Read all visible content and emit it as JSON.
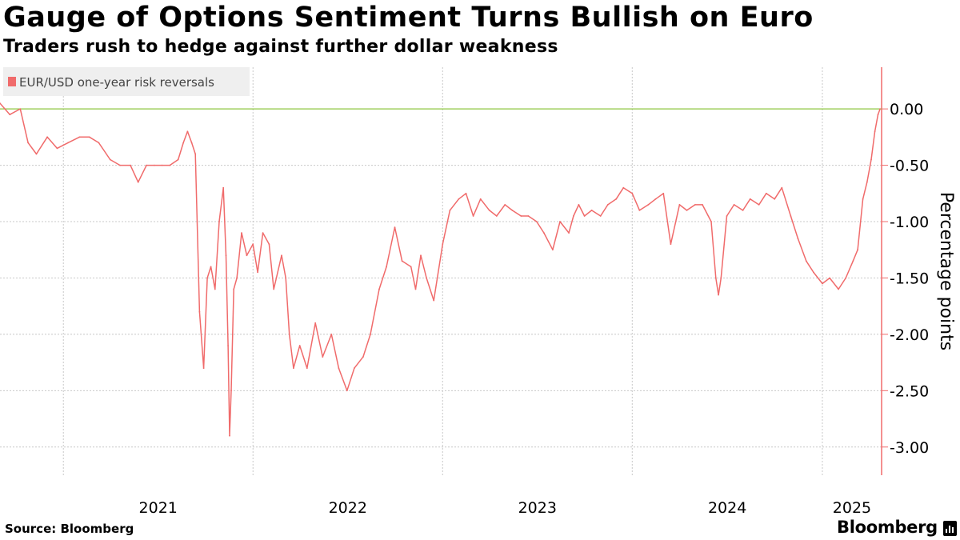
{
  "header": {
    "title": "Gauge of Options Sentiment Turns Bullish on Euro",
    "subtitle": "Traders rush to hedge against further dollar weakness"
  },
  "footer": {
    "source": "Source: Bloomberg",
    "brand": "Bloomberg"
  },
  "colors": {
    "series": "#f06b6b",
    "zero_line": "#8dc63f",
    "grid": "#c8c8c8",
    "axis": "#f06b6b",
    "legend_bg": "#efefef"
  },
  "chart_data": {
    "type": "line",
    "title": "Gauge of Options Sentiment Turns Bullish on Euro",
    "subtitle": "Traders rush to hedge against further dollar weakness",
    "ylabel": "Percentage points",
    "xlabel": "",
    "ylim": [
      -3.25,
      0.37
    ],
    "xlim": [
      "2020-09-01",
      "2025-04-25"
    ],
    "y_ticks": [
      0,
      -0.5,
      -1,
      -1.5,
      -2,
      -2.5,
      -3
    ],
    "y_tick_labels": [
      "0.00",
      "-0.50",
      "-1.00",
      "-1.50",
      "-2.00",
      "-2.50",
      "-3.00"
    ],
    "x_tick_labels": [
      "2021",
      "2022",
      "2023",
      "2024",
      "2025"
    ],
    "x_tick_dates": [
      "2021-01-01",
      "2022-01-01",
      "2023-01-01",
      "2024-01-01",
      "2025-01-01"
    ],
    "reference_line": 0,
    "grid": true,
    "legend_position": "top-left",
    "series": [
      {
        "name": "EUR/USD one-year risk reversals",
        "x": [
          "2020-09-01",
          "2020-09-20",
          "2020-10-10",
          "2020-10-25",
          "2020-11-10",
          "2020-12-01",
          "2020-12-20",
          "2021-01-10",
          "2021-02-01",
          "2021-02-20",
          "2021-03-10",
          "2021-04-01",
          "2021-04-20",
          "2021-05-10",
          "2021-05-25",
          "2021-06-10",
          "2021-06-25",
          "2021-07-10",
          "2021-07-25",
          "2021-08-10",
          "2021-08-20",
          "2021-08-28",
          "2021-09-05",
          "2021-09-12",
          "2021-09-20",
          "2021-09-28",
          "2021-10-05",
          "2021-10-12",
          "2021-10-20",
          "2021-10-28",
          "2021-11-05",
          "2021-11-10",
          "2021-11-14",
          "2021-11-17",
          "2021-11-20",
          "2021-11-25",
          "2021-12-01",
          "2021-12-10",
          "2021-12-20",
          "2022-01-01",
          "2022-01-10",
          "2022-01-20",
          "2022-02-01",
          "2022-02-10",
          "2022-02-25",
          "2022-03-05",
          "2022-03-12",
          "2022-03-20",
          "2022-04-01",
          "2022-04-15",
          "2022-05-01",
          "2022-05-15",
          "2022-06-01",
          "2022-06-15",
          "2022-07-01",
          "2022-07-15",
          "2022-08-01",
          "2022-08-15",
          "2022-09-01",
          "2022-09-15",
          "2022-10-01",
          "2022-10-15",
          "2022-11-01",
          "2022-11-10",
          "2022-11-20",
          "2022-12-01",
          "2022-12-15",
          "2023-01-01",
          "2023-01-15",
          "2023-02-01",
          "2023-02-15",
          "2023-03-01",
          "2023-03-15",
          "2023-04-01",
          "2023-04-15",
          "2023-05-01",
          "2023-05-15",
          "2023-06-01",
          "2023-06-15",
          "2023-07-01",
          "2023-07-15",
          "2023-08-01",
          "2023-08-15",
          "2023-09-01",
          "2023-09-10",
          "2023-09-20",
          "2023-10-01",
          "2023-10-15",
          "2023-11-01",
          "2023-11-15",
          "2023-12-01",
          "2023-12-15",
          "2024-01-01",
          "2024-01-15",
          "2024-02-01",
          "2024-02-15",
          "2024-03-01",
          "2024-03-15",
          "2024-04-01",
          "2024-04-15",
          "2024-05-01",
          "2024-05-15",
          "2024-06-01",
          "2024-06-10",
          "2024-06-15",
          "2024-06-20",
          "2024-07-01",
          "2024-07-15",
          "2024-08-01",
          "2024-08-15",
          "2024-09-01",
          "2024-09-15",
          "2024-10-01",
          "2024-10-15",
          "2024-11-01",
          "2024-11-15",
          "2024-12-01",
          "2024-12-15",
          "2025-01-01",
          "2025-01-15",
          "2025-02-01",
          "2025-02-15",
          "2025-03-01",
          "2025-03-10",
          "2025-03-20",
          "2025-03-28",
          "2025-04-05",
          "2025-04-12",
          "2025-04-18",
          "2025-04-22"
        ],
        "values": [
          0.05,
          -0.05,
          0.0,
          -0.3,
          -0.4,
          -0.25,
          -0.35,
          -0.3,
          -0.25,
          -0.25,
          -0.3,
          -0.45,
          -0.5,
          -0.5,
          -0.65,
          -0.5,
          -0.5,
          -0.5,
          -0.5,
          -0.45,
          -0.3,
          -0.2,
          -0.3,
          -0.4,
          -1.8,
          -2.3,
          -1.5,
          -1.4,
          -1.6,
          -1.0,
          -0.7,
          -1.3,
          -2.1,
          -2.9,
          -2.5,
          -1.6,
          -1.5,
          -1.1,
          -1.3,
          -1.2,
          -1.45,
          -1.1,
          -1.2,
          -1.6,
          -1.3,
          -1.5,
          -2.0,
          -2.3,
          -2.1,
          -2.3,
          -1.9,
          -2.2,
          -2.0,
          -2.3,
          -2.5,
          -2.3,
          -2.2,
          -2.0,
          -1.6,
          -1.4,
          -1.05,
          -1.35,
          -1.4,
          -1.6,
          -1.3,
          -1.5,
          -1.7,
          -1.2,
          -0.9,
          -0.8,
          -0.75,
          -0.95,
          -0.8,
          -0.9,
          -0.95,
          -0.85,
          -0.9,
          -0.95,
          -0.95,
          -1.0,
          -1.1,
          -1.25,
          -1.0,
          -1.1,
          -0.95,
          -0.85,
          -0.95,
          -0.9,
          -0.95,
          -0.85,
          -0.8,
          -0.7,
          -0.75,
          -0.9,
          -0.85,
          -0.8,
          -0.75,
          -1.2,
          -0.85,
          -0.9,
          -0.85,
          -0.85,
          -1.0,
          -1.5,
          -1.65,
          -1.5,
          -0.95,
          -0.85,
          -0.9,
          -0.8,
          -0.85,
          -0.75,
          -0.8,
          -0.7,
          -0.95,
          -1.15,
          -1.35,
          -1.45,
          -1.55,
          -1.5,
          -1.6,
          -1.5,
          -1.35,
          -1.25,
          -0.8,
          -0.65,
          -0.45,
          -0.2,
          -0.05,
          0.0
        ]
      }
    ]
  }
}
